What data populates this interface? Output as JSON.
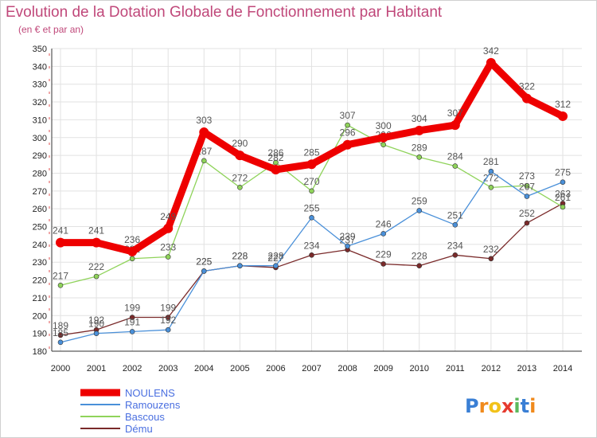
{
  "title": "Evolution de la Dotation Globale de Fonctionnement par Habitant",
  "subtitle": "(en € et par an)",
  "brand": {
    "text": "Proxiti",
    "letters": [
      "P",
      "r",
      "o",
      "x",
      "i",
      "t",
      "i"
    ],
    "colors": [
      "#3a7fd5",
      "#f08a1c",
      "#f2c21a",
      "#e63b2e",
      "#5cb85c",
      "#3a7fd5",
      "#f08a1c"
    ]
  },
  "chart_data": {
    "type": "line",
    "title": "Evolution de la Dotation Globale de Fonctionnement par Habitant",
    "subtitle": "(en € et par an)",
    "xlabel": "",
    "ylabel": "",
    "ylim": [
      180,
      350
    ],
    "y_ticks": [
      180,
      190,
      200,
      210,
      220,
      230,
      240,
      250,
      260,
      270,
      280,
      290,
      300,
      310,
      320,
      330,
      340,
      350
    ],
    "x": [
      "2000",
      "2001",
      "2002",
      "2003",
      "2004",
      "2005",
      "2006",
      "2007",
      "2008",
      "2009",
      "2010",
      "2011",
      "2012",
      "2013",
      "2014"
    ],
    "grid": true,
    "legend_position": "bottom-left",
    "series": [
      {
        "name": "Dému",
        "color": "#7a2a2a",
        "values": [
          189,
          192,
          199,
          199,
          225,
          228,
          227,
          234,
          237,
          229,
          228,
          234,
          232,
          252,
          263
        ]
      },
      {
        "name": "Bascous",
        "color": "#8fd35a",
        "values": [
          217,
          222,
          232,
          233,
          287,
          272,
          286,
          270,
          307,
          296,
          289,
          284,
          272,
          273,
          261
        ]
      },
      {
        "name": "Ramouzens",
        "color": "#4a90d9",
        "values": [
          185,
          190,
          191,
          192,
          225,
          228,
          228,
          255,
          239,
          246,
          259,
          251,
          281,
          267,
          275
        ]
      },
      {
        "name": "NOULENS",
        "color": "#ee0000",
        "values": [
          241,
          241,
          236,
          249,
          303,
          290,
          282,
          285,
          296,
          300,
          304,
          307,
          342,
          322,
          312
        ]
      }
    ]
  }
}
